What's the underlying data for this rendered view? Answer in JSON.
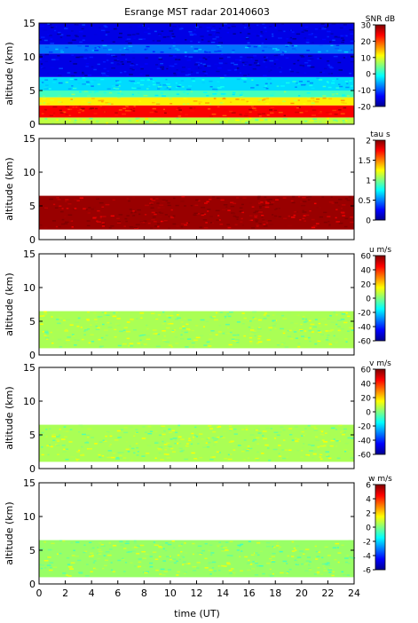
{
  "chart_data": {
    "type": "heatmap",
    "title": "Esrange MST radar 20140603",
    "xlabel": "time (UT)",
    "xlim": [
      0,
      24
    ],
    "x_ticks": [
      "0",
      "2",
      "4",
      "6",
      "8",
      "10",
      "12",
      "14",
      "16",
      "18",
      "20",
      "22",
      "24"
    ],
    "panels": [
      {
        "ylabel": "altitude (km)",
        "ylim": [
          0,
          15
        ],
        "y_ticks": [
          "0",
          "5",
          "10",
          "15"
        ],
        "quantity": "SNR dB",
        "colorbar_label": "SNR dB",
        "colorbar_ticks": [
          "30",
          "20",
          "10",
          "0",
          "-10",
          "-20"
        ],
        "colorbar_range": [
          -20,
          30
        ],
        "layers": [
          {
            "alt_range_km": [
              0.0,
              1.0
            ],
            "value": 8
          },
          {
            "alt_range_km": [
              1.0,
              2.8
            ],
            "value": 24
          },
          {
            "alt_range_km": [
              2.8,
              4.0
            ],
            "value": 12
          },
          {
            "alt_range_km": [
              4.0,
              5.0
            ],
            "value": 2
          },
          {
            "alt_range_km": [
              5.0,
              7.0
            ],
            "value": -3
          },
          {
            "alt_range_km": [
              7.0,
              10.5
            ],
            "value": -15
          },
          {
            "alt_range_km": [
              10.5,
              11.8
            ],
            "value": -8
          },
          {
            "alt_range_km": [
              11.8,
              15.0
            ],
            "value": -15
          }
        ]
      },
      {
        "ylabel": "altitude (km)",
        "ylim": [
          0,
          15
        ],
        "y_ticks": [
          "0",
          "5",
          "10",
          "15"
        ],
        "quantity": "tau s",
        "colorbar_label": "tau s",
        "colorbar_ticks": [
          "2",
          "1.5",
          "1",
          "0.5",
          "0"
        ],
        "colorbar_range": [
          0,
          2
        ],
        "layers": [
          {
            "alt_range_km": [
              1.5,
              6.5
            ],
            "value": 1.95
          }
        ]
      },
      {
        "ylabel": "altitude (km)",
        "ylim": [
          0,
          15
        ],
        "y_ticks": [
          "0",
          "5",
          "10",
          "15"
        ],
        "quantity": "u m/s",
        "colorbar_label": "u m/s",
        "colorbar_ticks": [
          "60",
          "40",
          "20",
          "0",
          "-20",
          "-40",
          "-60"
        ],
        "colorbar_range": [
          -60,
          60
        ],
        "layers": [
          {
            "alt_range_km": [
              1.0,
              6.5
            ],
            "value": 5
          }
        ]
      },
      {
        "ylabel": "altitude (km)",
        "ylim": [
          0,
          15
        ],
        "y_ticks": [
          "0",
          "5",
          "10",
          "15"
        ],
        "quantity": "v m/s",
        "colorbar_label": "v m/s",
        "colorbar_ticks": [
          "60",
          "40",
          "20",
          "0",
          "-20",
          "-40",
          "-60"
        ],
        "colorbar_range": [
          -60,
          60
        ],
        "layers": [
          {
            "alt_range_km": [
              1.0,
              6.5
            ],
            "value": 5
          }
        ]
      },
      {
        "ylabel": "altitude (km)",
        "ylim": [
          0,
          15
        ],
        "y_ticks": [
          "0",
          "5",
          "10",
          "15"
        ],
        "quantity": "w m/s",
        "colorbar_label": "w m/s",
        "colorbar_ticks": [
          "6",
          "4",
          "2",
          "0",
          "-2",
          "-4",
          "-6"
        ],
        "colorbar_range": [
          -6,
          6
        ],
        "layers": [
          {
            "alt_range_km": [
              1.0,
              6.5
            ],
            "value": 0.3
          }
        ]
      }
    ],
    "colormap": "jet",
    "grid": false,
    "legend": "colorbar-right"
  }
}
